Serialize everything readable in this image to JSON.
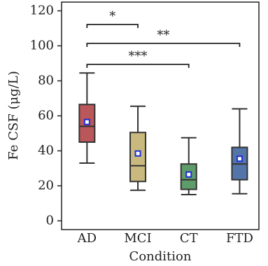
{
  "chart_data": {
    "type": "box",
    "x_label": "Condition",
    "y_label": "Fe CSF (μg/L)",
    "categories": [
      "AD",
      "MCI",
      "CT",
      "FTD"
    ],
    "colors": [
      "#b9575a",
      "#c9b97e",
      "#5f9c6b",
      "#5475a8"
    ],
    "mean_color": "#1f2fd6",
    "boxes": [
      {
        "whisker_low": 33,
        "q1": 45,
        "median": 54,
        "q3": 66.5,
        "whisker_high": 84.5,
        "mean": 56.5
      },
      {
        "whisker_low": 17.5,
        "q1": 22.5,
        "median": 31.5,
        "q3": 50.5,
        "whisker_high": 65.5,
        "mean": 38.5
      },
      {
        "whisker_low": 15,
        "q1": 18,
        "median": 23.5,
        "q3": 32.5,
        "whisker_high": 47.5,
        "mean": 26.5
      },
      {
        "whisker_low": 15.5,
        "q1": 23.5,
        "median": 32.5,
        "q3": 42,
        "whisker_high": 64,
        "mean": 35.5
      }
    ],
    "annotations": [
      {
        "label": "*",
        "from": "AD",
        "to": "MCI"
      },
      {
        "label": "**",
        "from": "AD",
        "to": "FTD"
      },
      {
        "label": "***",
        "from": "AD",
        "to": "CT"
      }
    ],
    "ylim": [
      -5,
      125
    ],
    "yticks": [
      0,
      20,
      40,
      60,
      80,
      100,
      120
    ]
  }
}
